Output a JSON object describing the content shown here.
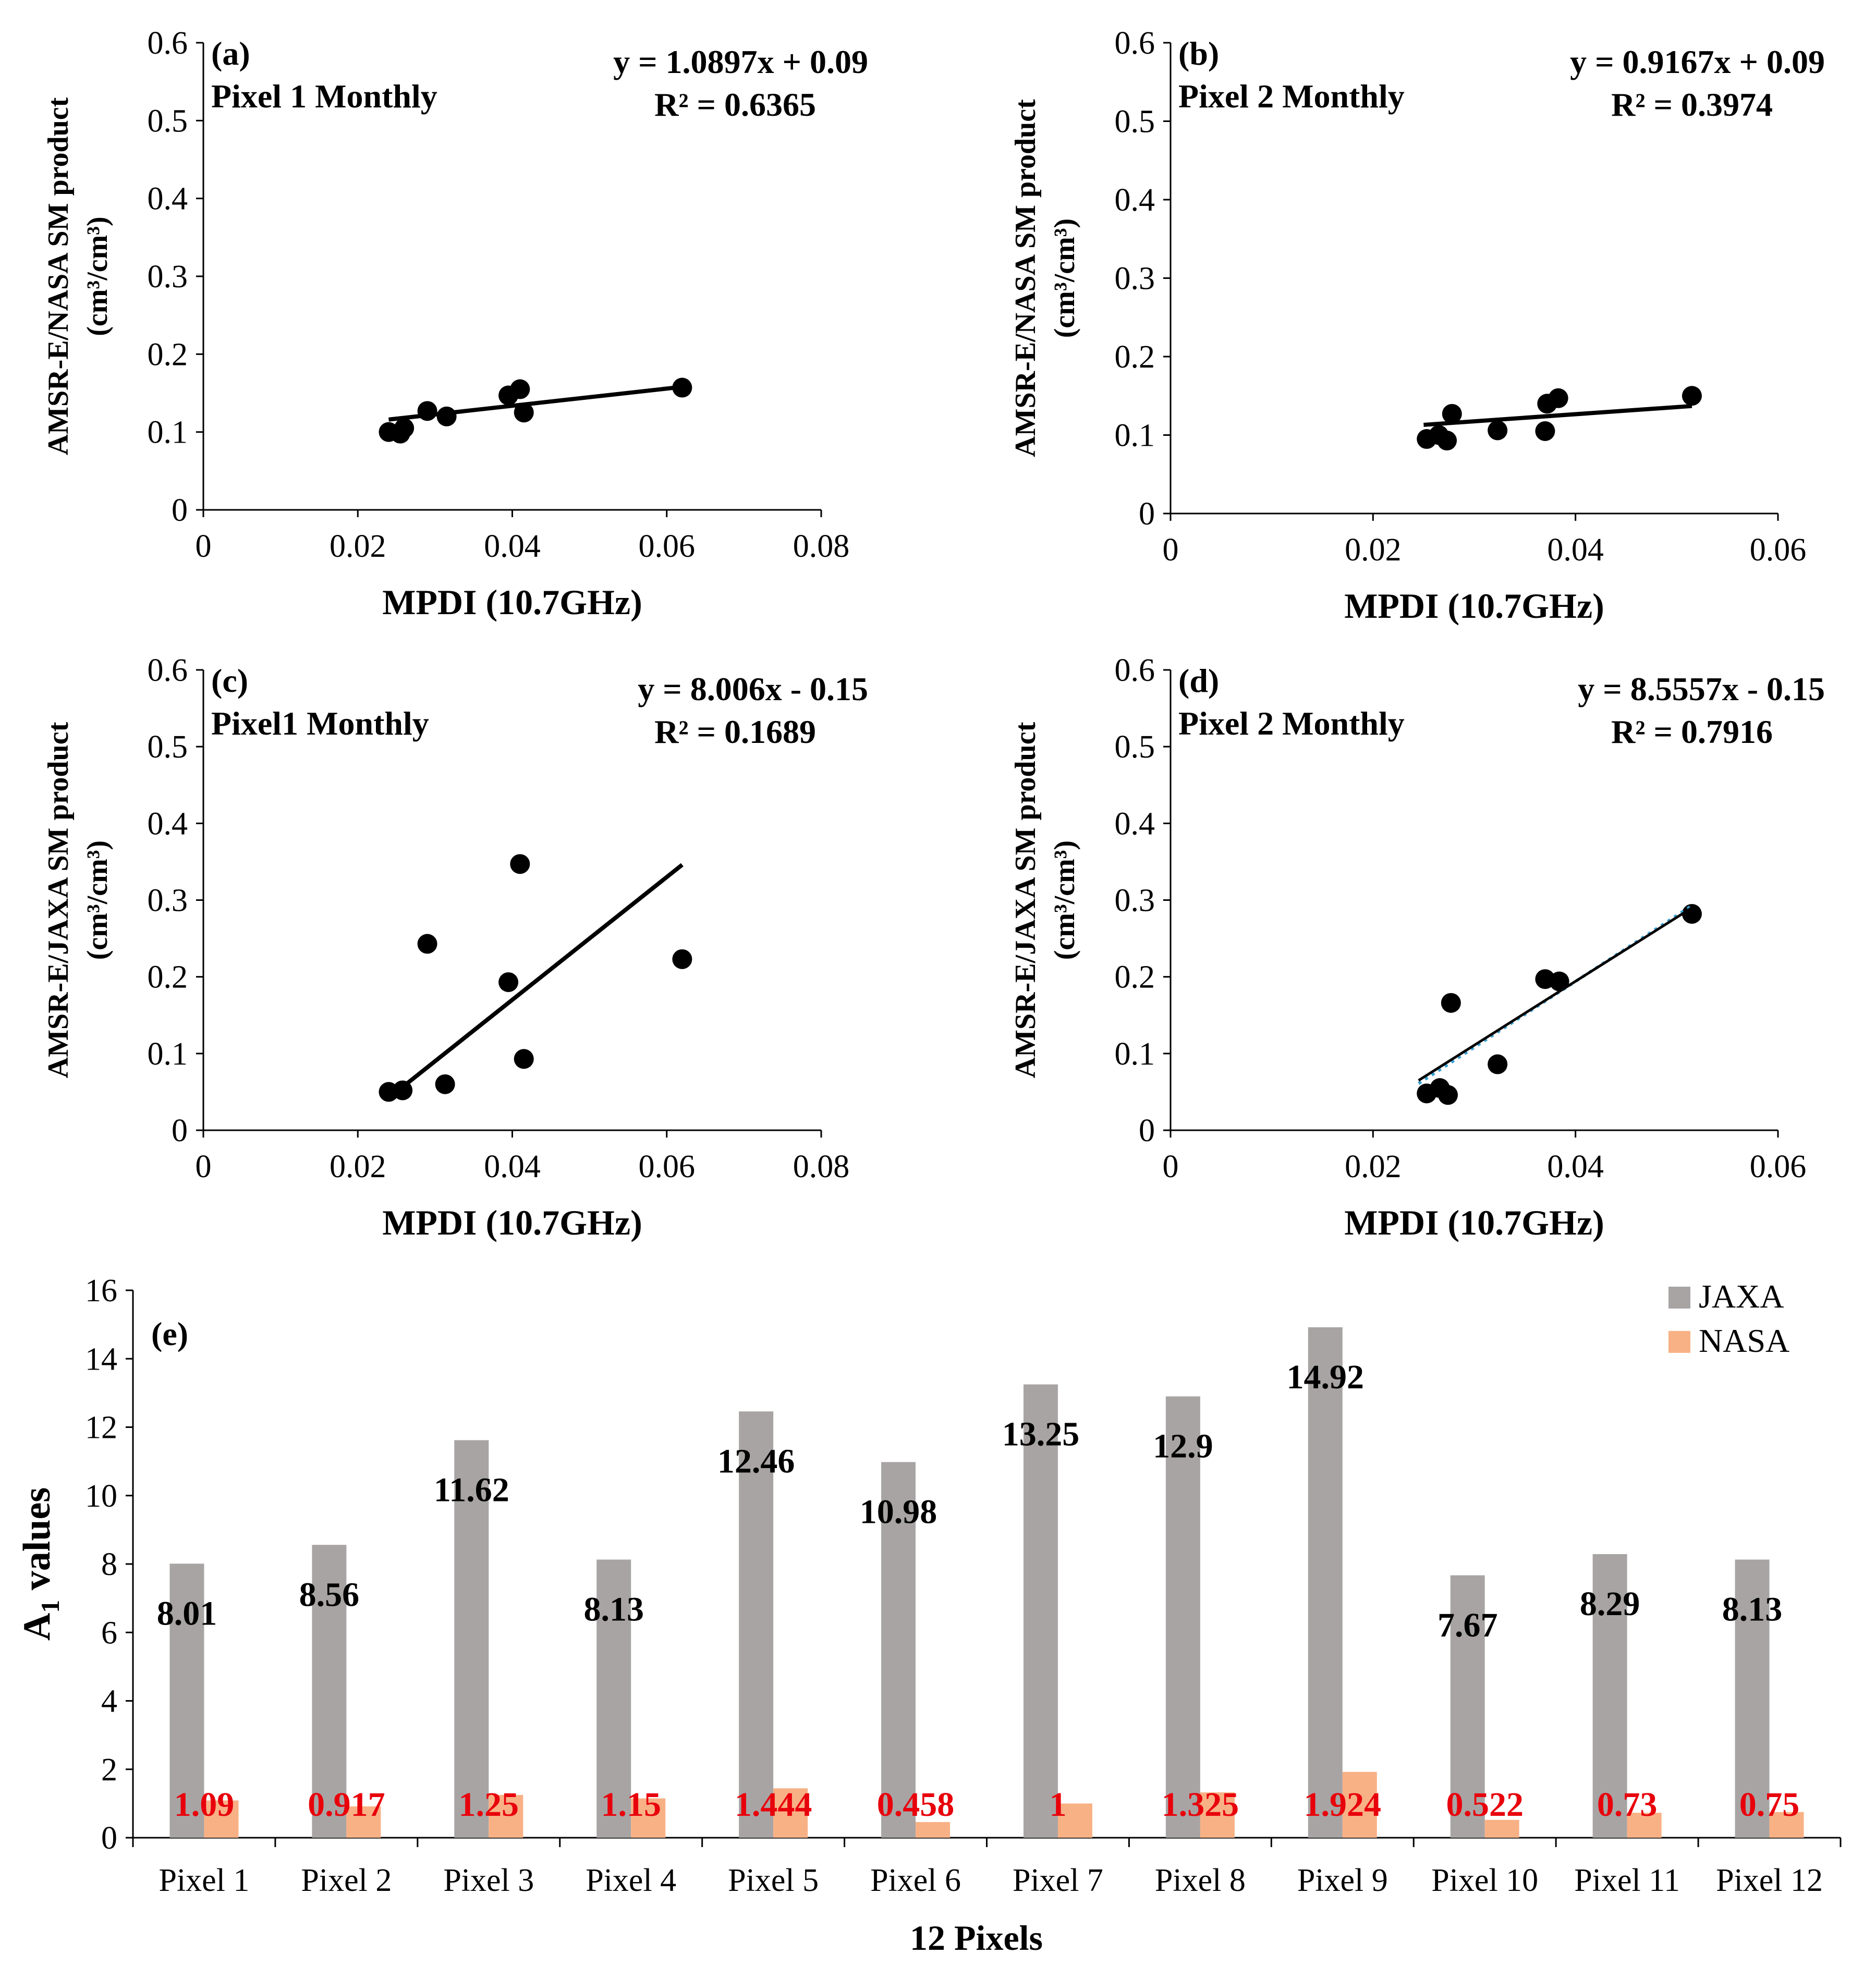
{
  "colors": {
    "jaxa": "#a8a4a4",
    "nasa": "#f8b185",
    "nasa_label": "#e8000b",
    "fit_dotted": "#3aa0d0"
  },
  "chart_data": [
    {
      "id": "a",
      "type": "scatter",
      "panel_label": "(a)",
      "title": "Pixel 1 Monthly",
      "equation": "y = 1.0897x + 0.09",
      "r2": "R² = 0.6365",
      "xlabel": "MPDI (10.7GHz)",
      "ylabel_line1": "AMSR-E/NASA SM product",
      "ylabel_line2": "(cm³/cm³)",
      "xlim": [
        0,
        0.08
      ],
      "ylim": [
        0,
        0.6
      ],
      "xticks": [
        "0",
        "0.02",
        "0.04",
        "0.06",
        "0.08"
      ],
      "yticks": [
        "0",
        "0.1",
        "0.2",
        "0.3",
        "0.4",
        "0.5",
        "0.6"
      ],
      "points": [
        [
          0.024,
          0.1
        ],
        [
          0.0255,
          0.098
        ],
        [
          0.026,
          0.105
        ],
        [
          0.029,
          0.127
        ],
        [
          0.0315,
          0.12
        ],
        [
          0.0395,
          0.147
        ],
        [
          0.041,
          0.155
        ],
        [
          0.0415,
          0.125
        ],
        [
          0.062,
          0.157
        ]
      ],
      "trend": {
        "x0": 0.024,
        "y0": 0.116,
        "x1": 0.062,
        "y1": 0.158,
        "dotted": false
      }
    },
    {
      "id": "b",
      "type": "scatter",
      "panel_label": "(b)",
      "title": "Pixel 2 Monthly",
      "equation": "y = 0.9167x + 0.09",
      "r2": "R² = 0.3974",
      "xlabel": "MPDI (10.7GHz)",
      "ylabel_line1": "AMSR-E/NASA SM product",
      "ylabel_line2": "(cm³/cm³)",
      "xlim": [
        0,
        0.06
      ],
      "ylim": [
        0,
        0.6
      ],
      "xticks": [
        "0",
        "0.02",
        "0.04",
        "0.06"
      ],
      "yticks": [
        "0",
        "0.1",
        "0.2",
        "0.3",
        "0.4",
        "0.5",
        "0.6"
      ],
      "points": [
        [
          0.0253,
          0.095
        ],
        [
          0.0265,
          0.1
        ],
        [
          0.0273,
          0.093
        ],
        [
          0.0278,
          0.127
        ],
        [
          0.0323,
          0.106
        ],
        [
          0.037,
          0.105
        ],
        [
          0.0372,
          0.14
        ],
        [
          0.0383,
          0.147
        ],
        [
          0.0515,
          0.15
        ]
      ],
      "trend": {
        "x0": 0.025,
        "y0": 0.113,
        "x1": 0.0515,
        "y1": 0.137,
        "dotted": false
      }
    },
    {
      "id": "c",
      "type": "scatter",
      "panel_label": "(c)",
      "title": "Pixel1 Monthly",
      "equation": "y = 8.006x - 0.15",
      "r2": "R² = 0.1689",
      "xlabel": "MPDI (10.7GHz)",
      "ylabel_line1": "AMSR-E/JAXA SM product",
      "ylabel_line2": "(cm³/cm³)",
      "xlim": [
        0,
        0.08
      ],
      "ylim": [
        0,
        0.6
      ],
      "xticks": [
        "0",
        "0.02",
        "0.04",
        "0.06",
        "0.08"
      ],
      "yticks": [
        "0",
        "0.1",
        "0.2",
        "0.3",
        "0.4",
        "0.5",
        "0.6"
      ],
      "points": [
        [
          0.024,
          0.05
        ],
        [
          0.0258,
          0.052
        ],
        [
          0.029,
          0.243
        ],
        [
          0.0313,
          0.06
        ],
        [
          0.0395,
          0.193
        ],
        [
          0.041,
          0.347
        ],
        [
          0.0415,
          0.093
        ],
        [
          0.062,
          0.223
        ]
      ],
      "trend": {
        "x0": 0.025,
        "y0": 0.05,
        "x1": 0.062,
        "y1": 0.346,
        "dotted": false
      }
    },
    {
      "id": "d",
      "type": "scatter",
      "panel_label": "(d)",
      "title": "Pixel 2 Monthly",
      "equation": "y = 8.5557x - 0.15",
      "r2": "R² = 0.7916",
      "xlabel": "MPDI (10.7GHz)",
      "ylabel_line1": "AMSR-E/JAXA SM product",
      "ylabel_line2": "(cm³/cm³)",
      "xlim": [
        0,
        0.06
      ],
      "ylim": [
        0,
        0.6
      ],
      "xticks": [
        "0",
        "0.02",
        "0.04",
        "0.06"
      ],
      "yticks": [
        "0",
        "0.1",
        "0.2",
        "0.3",
        "0.4",
        "0.5",
        "0.6"
      ],
      "points": [
        [
          0.0253,
          0.048
        ],
        [
          0.0266,
          0.055
        ],
        [
          0.0274,
          0.046
        ],
        [
          0.0277,
          0.166
        ],
        [
          0.0323,
          0.086
        ],
        [
          0.037,
          0.197
        ],
        [
          0.0384,
          0.194
        ],
        [
          0.0515,
          0.282
        ]
      ],
      "trend": {
        "x0": 0.0245,
        "y0": 0.065,
        "x1": 0.0515,
        "y1": 0.29,
        "dotted": true
      }
    },
    {
      "id": "e",
      "type": "bar",
      "panel_label": "(e)",
      "title": "",
      "xlabel": "12 Pixels",
      "ylabel_main": "A",
      "ylabel_sub": "1",
      "ylabel_rest": " values",
      "ylim": [
        0,
        16
      ],
      "yticks": [
        "0",
        "2",
        "4",
        "6",
        "8",
        "10",
        "12",
        "14",
        "16"
      ],
      "categories": [
        "Pixel 1",
        "Pixel 2",
        "Pixel 3",
        "Pixel 4",
        "Pixel 5",
        "Pixel 6",
        "Pixel 7",
        "Pixel 8",
        "Pixel 9",
        "Pixel 10",
        "Pixel 11",
        "Pixel 12"
      ],
      "series": [
        {
          "name": "JAXA",
          "values": [
            8.01,
            8.56,
            11.62,
            8.13,
            12.46,
            10.98,
            13.25,
            12.9,
            14.92,
            7.67,
            8.29,
            8.13
          ],
          "labels": [
            "8.01",
            "8.56",
            "11.62",
            "8.13",
            "12.46",
            "10.98",
            "13.25",
            "12.9",
            "14.92",
            "7.67",
            "8.29",
            "8.13"
          ]
        },
        {
          "name": "NASA",
          "values": [
            1.09,
            0.917,
            1.25,
            1.15,
            1.444,
            0.458,
            1,
            1.325,
            1.924,
            0.522,
            0.73,
            0.75
          ],
          "labels": [
            "1.09",
            "0.917",
            "1.25",
            "1.15",
            "1.444",
            "0.458",
            "1",
            "1.325",
            "1.924",
            "0.522",
            "0.73",
            "0.75"
          ]
        }
      ],
      "legend": [
        "JAXA",
        "NASA"
      ]
    }
  ]
}
